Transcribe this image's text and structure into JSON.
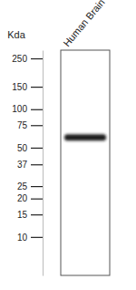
{
  "chart_data": {
    "type": "blot",
    "ylabel": "Kda",
    "categories": [
      "Human Brain"
    ],
    "values": [
      60
    ],
    "color": "#1e1e1e",
    "ylim": [
      5,
      290
    ],
    "yticks": [
      250,
      150,
      100,
      75,
      50,
      37,
      25,
      20,
      15,
      10
    ],
    "log": "y"
  }
}
